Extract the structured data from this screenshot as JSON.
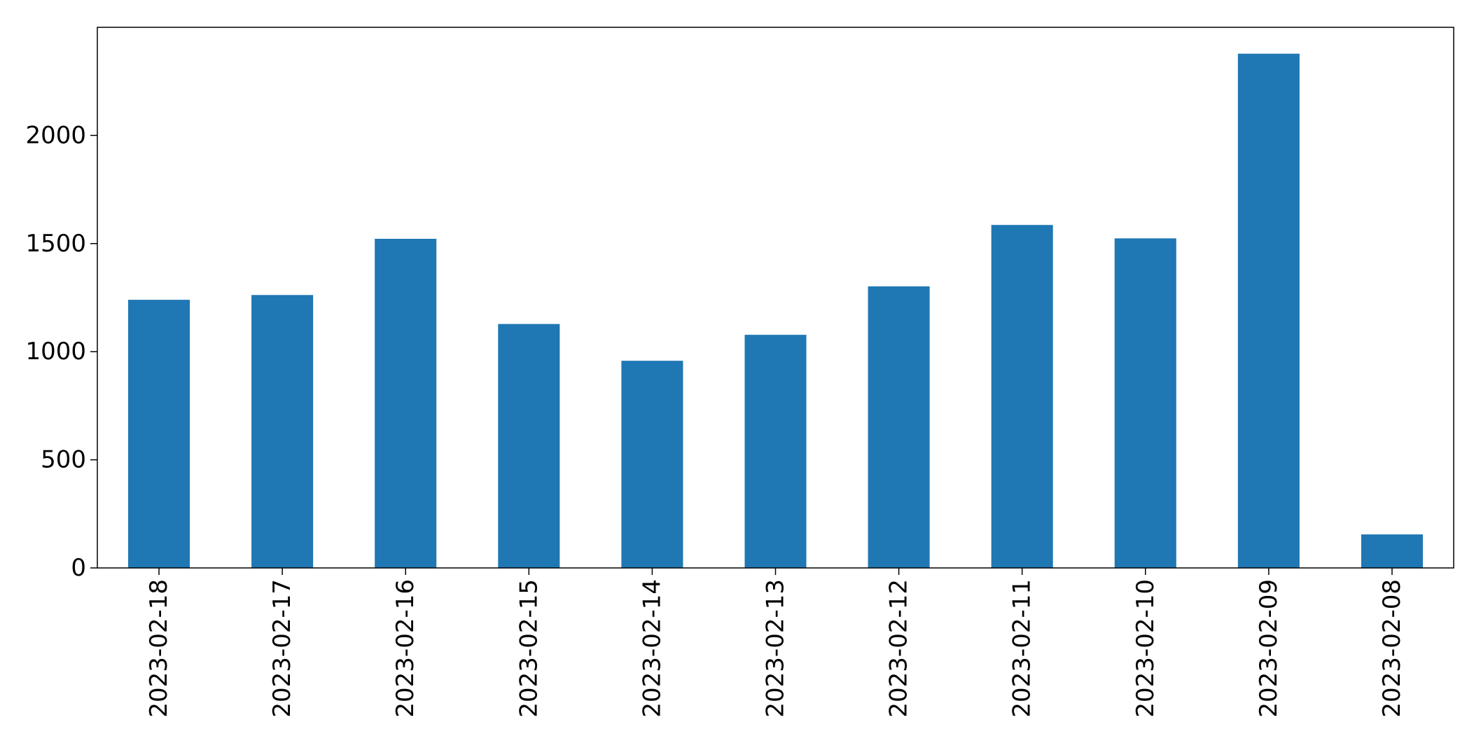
{
  "chart_data": {
    "type": "bar",
    "categories": [
      "2023-02-18",
      "2023-02-17",
      "2023-02-16",
      "2023-02-15",
      "2023-02-14",
      "2023-02-13",
      "2023-02-12",
      "2023-02-11",
      "2023-02-10",
      "2023-02-09",
      "2023-02-08"
    ],
    "values": [
      1240,
      1262,
      1522,
      1128,
      958,
      1078,
      1302,
      1586,
      1524,
      2378,
      155
    ],
    "title": "",
    "xlabel": "",
    "ylabel": "",
    "ylim": [
      0,
      2500
    ],
    "yticks": [
      0,
      500,
      1000,
      1500,
      2000
    ],
    "grid": false,
    "legend": "none",
    "bar_color": "#1f77b4",
    "axis_color": "#000000",
    "background": "#ffffff"
  }
}
